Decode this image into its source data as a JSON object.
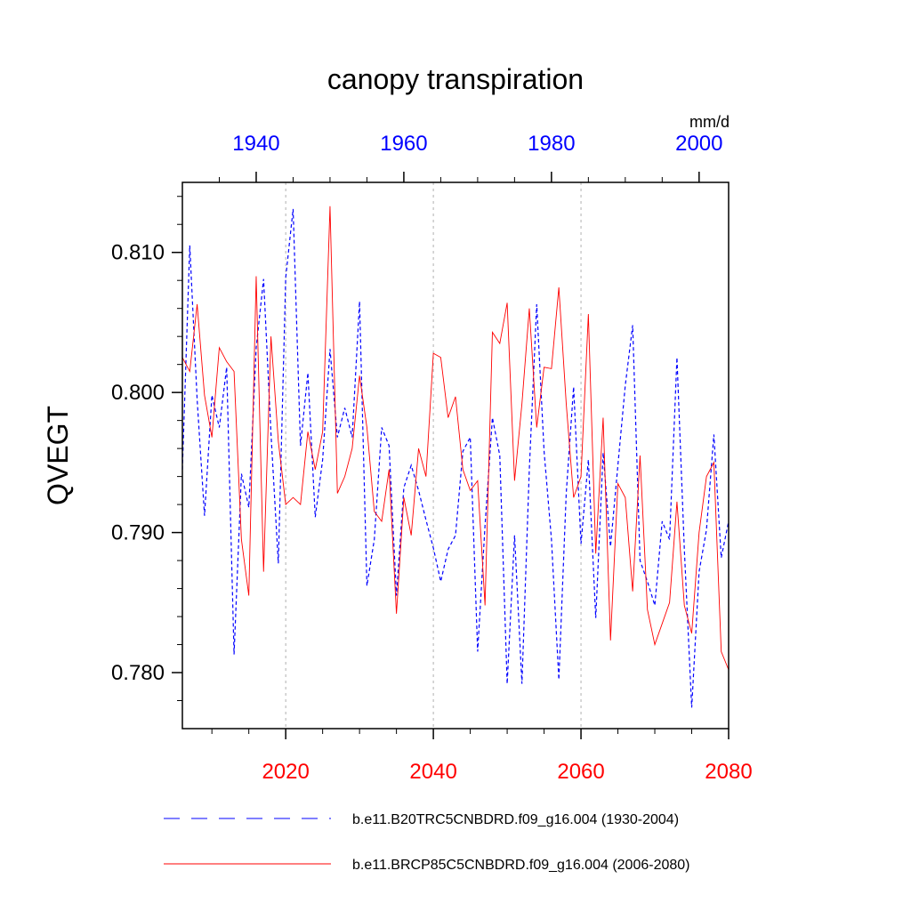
{
  "chart_data": {
    "type": "line",
    "title": "canopy transpiration",
    "ylabel": "QVEGT",
    "units": "mm/d",
    "ylim": [
      0.776,
      0.815
    ],
    "yticks": [
      0.78,
      0.79,
      0.8,
      0.81
    ],
    "ytick_labels": [
      "0.780",
      "0.790",
      "0.800",
      "0.810"
    ],
    "bottom_axis": {
      "range": [
        2006,
        2080
      ],
      "ticks": [
        2020,
        2040,
        2060,
        2080
      ],
      "tick_labels": [
        "2020",
        "2040",
        "2060",
        "2080"
      ],
      "color": "#ff0000"
    },
    "top_axis": {
      "range": [
        1930,
        2004
      ],
      "ticks": [
        1940,
        1960,
        1980,
        2000
      ],
      "tick_labels": [
        "1940",
        "1960",
        "1980",
        "2000"
      ],
      "color": "#0000ff"
    },
    "vgrid_at_bottom_x": [
      2020,
      2040,
      2060
    ],
    "series": [
      {
        "name": "b.e11.B20TRC5CNBDRD.f09_g16.004 (1930-2004)",
        "axis": "top",
        "color": "#0000ff",
        "dash": "dashed",
        "x": [
          1930,
          1931,
          1932,
          1933,
          1934,
          1935,
          1936,
          1937,
          1938,
          1939,
          1940,
          1941,
          1942,
          1943,
          1944,
          1945,
          1946,
          1947,
          1948,
          1949,
          1950,
          1951,
          1952,
          1953,
          1954,
          1955,
          1956,
          1957,
          1958,
          1959,
          1960,
          1961,
          1962,
          1963,
          1964,
          1965,
          1966,
          1967,
          1968,
          1969,
          1970,
          1971,
          1972,
          1973,
          1974,
          1975,
          1976,
          1977,
          1978,
          1979,
          1980,
          1981,
          1982,
          1983,
          1984,
          1985,
          1986,
          1987,
          1988,
          1989,
          1990,
          1991,
          1992,
          1993,
          1994,
          1995,
          1996,
          1997,
          1998,
          1999,
          2000,
          2001,
          2002,
          2003,
          2004
        ],
        "values": [
          0.7945,
          0.8105,
          0.7995,
          0.7912,
          0.7998,
          0.7975,
          0.8018,
          0.7813,
          0.7942,
          0.7918,
          0.8032,
          0.8081,
          0.7971,
          0.7878,
          0.8082,
          0.8131,
          0.7962,
          0.8014,
          0.7911,
          0.7952,
          0.8031,
          0.7968,
          0.7989,
          0.7968,
          0.8065,
          0.7862,
          0.7895,
          0.7975,
          0.7962,
          0.7855,
          0.7932,
          0.7948,
          0.793,
          0.7909,
          0.7889,
          0.7865,
          0.7888,
          0.7898,
          0.7958,
          0.7968,
          0.7815,
          0.7905,
          0.7982,
          0.7955,
          0.7792,
          0.7898,
          0.7792,
          0.7945,
          0.8063,
          0.7958,
          0.7895,
          0.7795,
          0.7928,
          0.8004,
          0.7892,
          0.7952,
          0.7839,
          0.7957,
          0.789,
          0.7948,
          0.8005,
          0.8048,
          0.788,
          0.7865,
          0.7848,
          0.7908,
          0.7895,
          0.8025,
          0.7888,
          0.7775,
          0.7872,
          0.7902,
          0.797,
          0.7882,
          0.7908
        ]
      },
      {
        "name": "b.e11.BRCP85C5CNBDRD.f09_g16.004 (2006-2080)",
        "axis": "bottom",
        "color": "#ff0000",
        "dash": "solid",
        "x": [
          2006,
          2007,
          2008,
          2009,
          2010,
          2011,
          2012,
          2013,
          2014,
          2015,
          2016,
          2017,
          2018,
          2019,
          2020,
          2021,
          2022,
          2023,
          2024,
          2025,
          2026,
          2027,
          2028,
          2029,
          2030,
          2031,
          2032,
          2033,
          2034,
          2035,
          2036,
          2037,
          2038,
          2039,
          2040,
          2041,
          2042,
          2043,
          2044,
          2045,
          2046,
          2047,
          2048,
          2049,
          2050,
          2051,
          2052,
          2053,
          2054,
          2055,
          2056,
          2057,
          2058,
          2059,
          2060,
          2061,
          2062,
          2063,
          2064,
          2065,
          2066,
          2067,
          2068,
          2069,
          2070,
          2071,
          2072,
          2073,
          2074,
          2075,
          2076,
          2077,
          2078,
          2079,
          2080
        ],
        "values": [
          0.8025,
          0.8015,
          0.8063,
          0.7998,
          0.7968,
          0.8032,
          0.8022,
          0.8015,
          0.7895,
          0.7855,
          0.8083,
          0.7872,
          0.804,
          0.7965,
          0.792,
          0.7925,
          0.792,
          0.7972,
          0.7945,
          0.7972,
          0.8133,
          0.7928,
          0.794,
          0.796,
          0.8012,
          0.7975,
          0.7915,
          0.7908,
          0.7945,
          0.7842,
          0.7925,
          0.7898,
          0.796,
          0.794,
          0.8028,
          0.8025,
          0.7982,
          0.7997,
          0.7945,
          0.793,
          0.7937,
          0.7848,
          0.8043,
          0.8035,
          0.8064,
          0.7937,
          0.7992,
          0.806,
          0.7975,
          0.8018,
          0.8017,
          0.8075,
          0.7992,
          0.7925,
          0.794,
          0.8056,
          0.7885,
          0.7982,
          0.7823,
          0.7935,
          0.7925,
          0.7858,
          0.7955,
          0.7845,
          0.782,
          0.7835,
          0.785,
          0.7922,
          0.7848,
          0.7828,
          0.79,
          0.794,
          0.795,
          0.7815,
          0.7802
        ]
      }
    ]
  }
}
